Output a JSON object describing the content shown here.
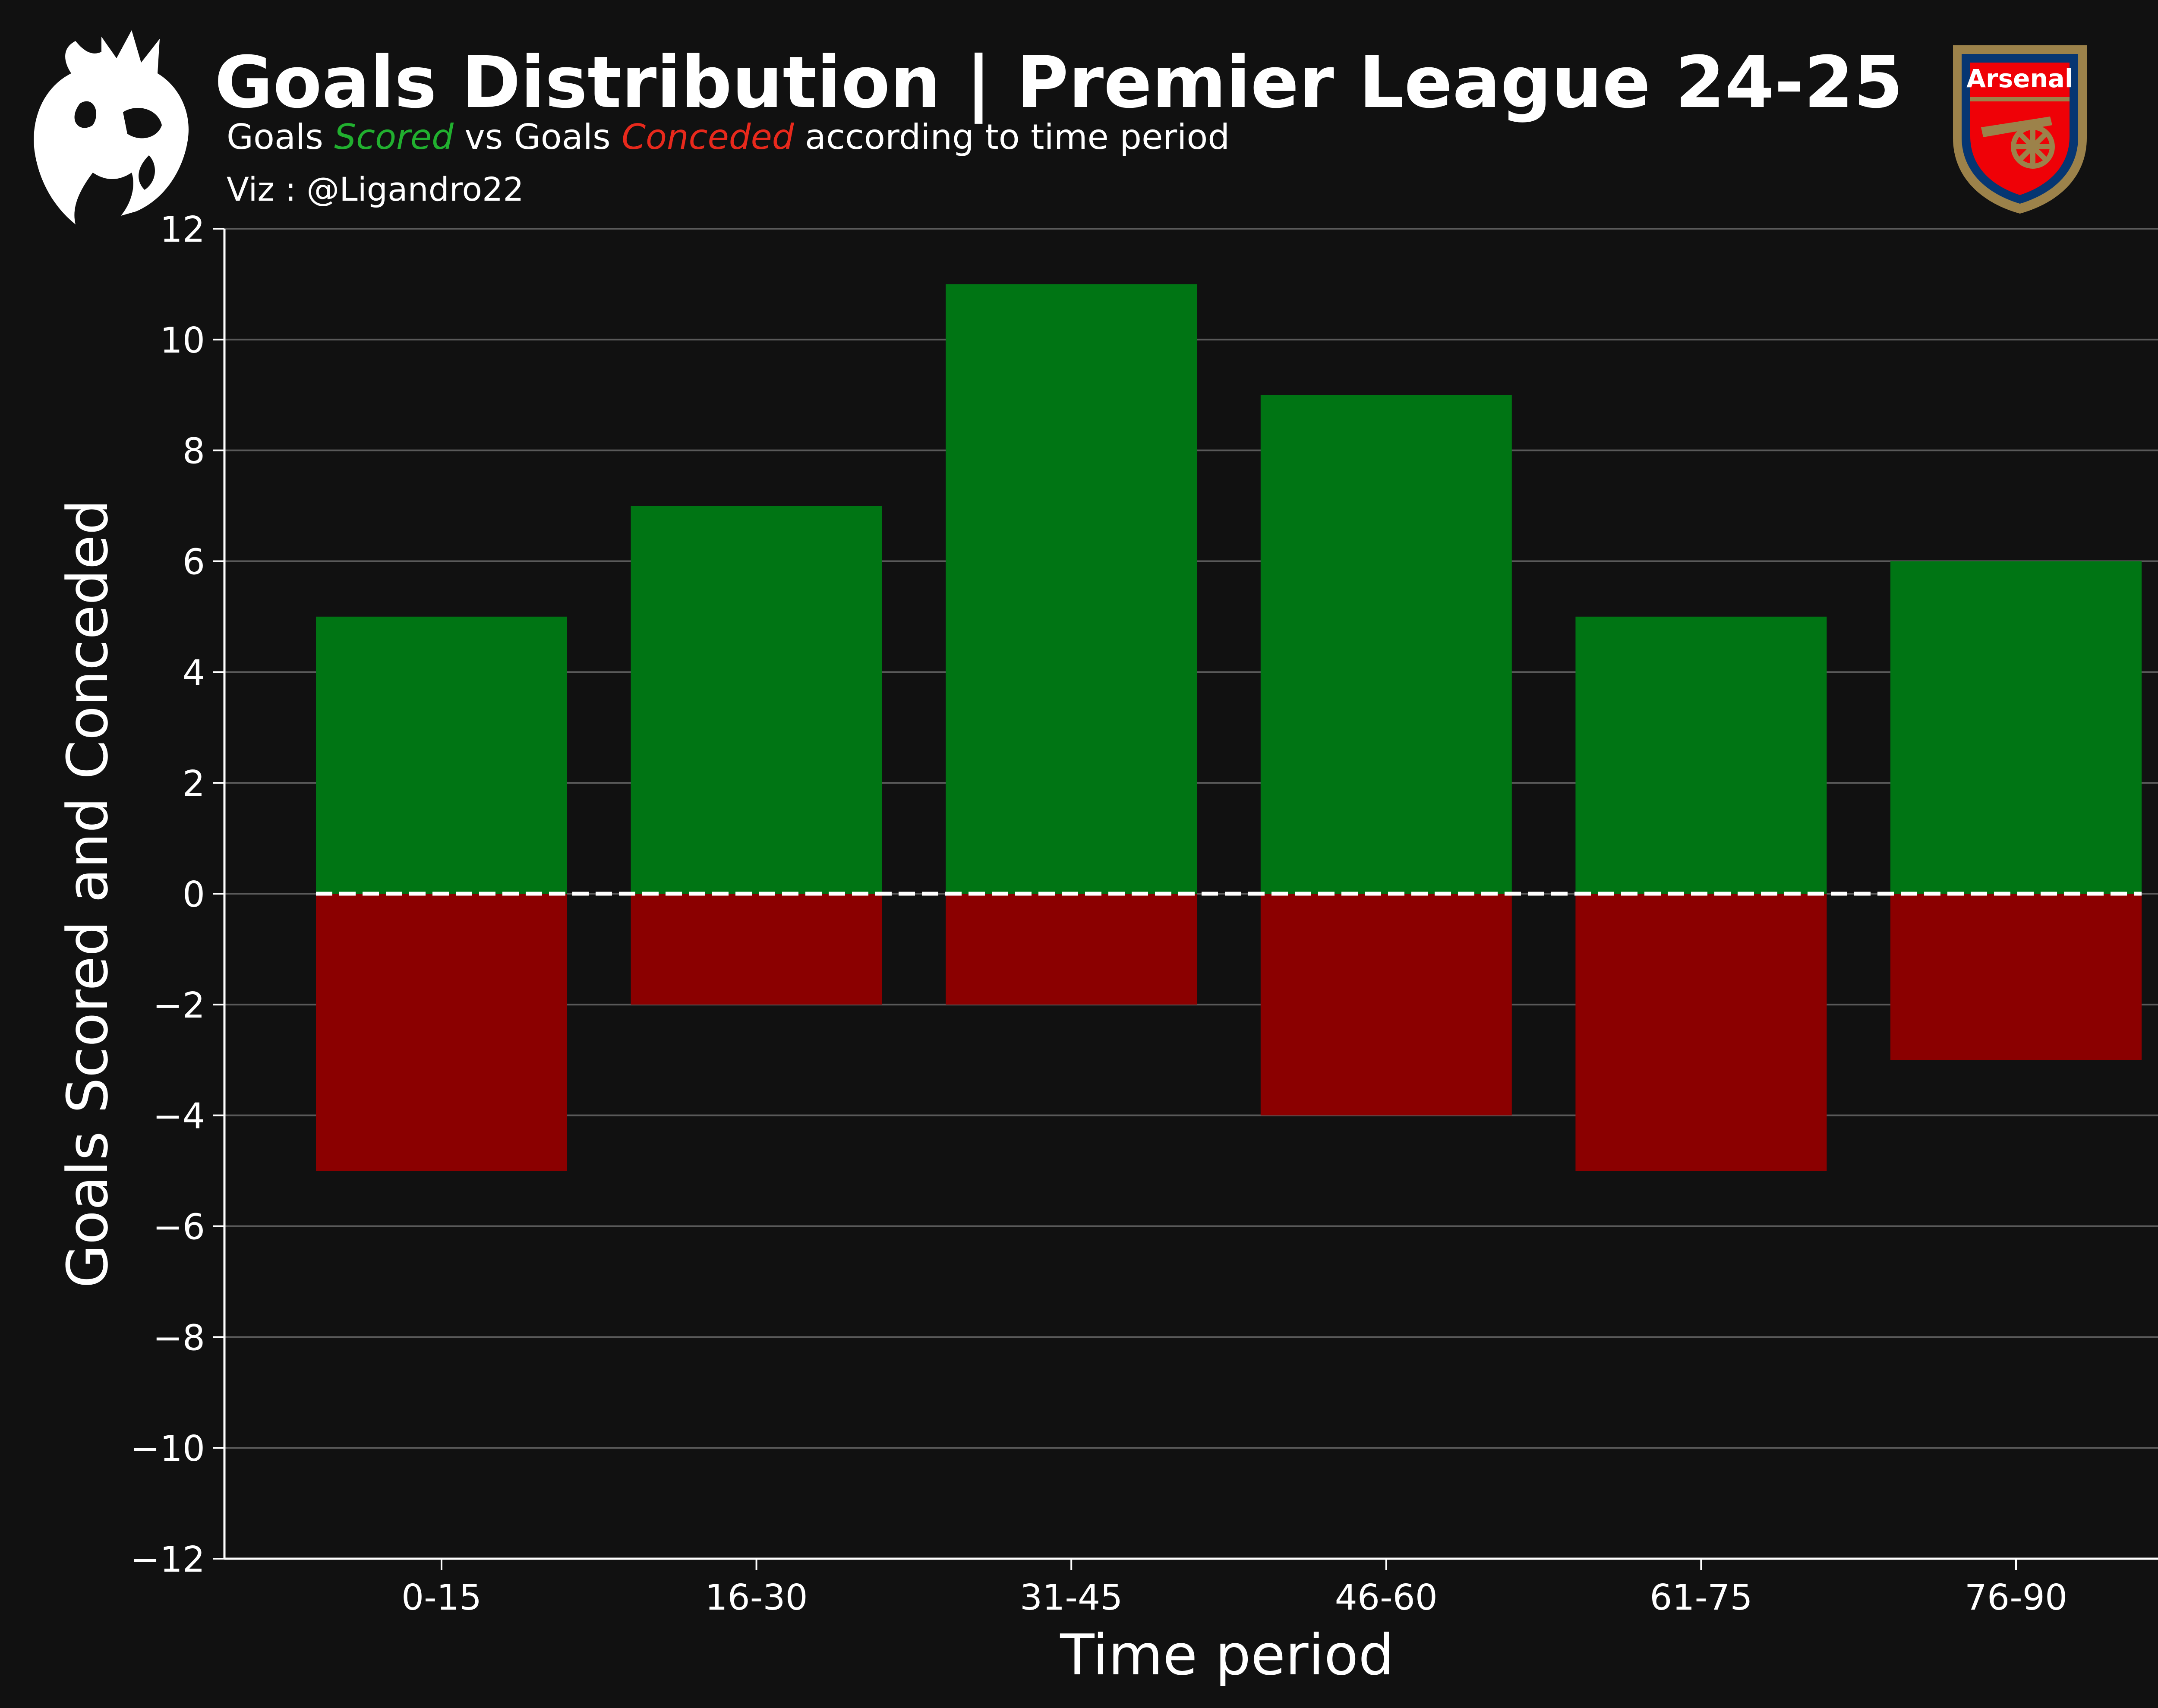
{
  "header": {
    "title": "Goals Distribution | Premier League 24-25",
    "subtitle_parts": [
      "Goals ",
      "Scored",
      " vs Goals ",
      "Conceded",
      " according to time period"
    ],
    "credit": "Viz : @Ligandro22",
    "league_logo": "premier-league-lion-logo",
    "club_badge": {
      "name": "arsenal-badge",
      "text": "Arsenal"
    }
  },
  "colors": {
    "background": "#111111",
    "scored": "#007514",
    "conceded": "#8b0000",
    "scored_text": "#21b02f",
    "conceded_text": "#e8291c",
    "grid": "#5a5a5a",
    "zero_line": "#ffffff",
    "arsenal_red": "#ef0107",
    "arsenal_gold": "#9c824a",
    "arsenal_navy": "#063672"
  },
  "chart_data": {
    "type": "bar",
    "categories": [
      "0-15",
      "16-30",
      "31-45",
      "46-60",
      "61-75",
      "76-90"
    ],
    "series": [
      {
        "name": "Scored",
        "values": [
          5,
          7,
          11,
          9,
          5,
          6
        ]
      },
      {
        "name": "Conceded",
        "values": [
          -5,
          -2,
          -2,
          -4,
          -5,
          -3
        ]
      }
    ],
    "title": "Goals Distribution | Premier League 24-25",
    "xlabel": "Time period",
    "ylabel": "Goals Scored and Conceded",
    "ylim": [
      -12,
      12
    ],
    "yticks": [
      12,
      10,
      8,
      6,
      4,
      2,
      0,
      -2,
      -4,
      -6,
      -8,
      -10,
      -12
    ],
    "ytick_labels": [
      "12",
      "10",
      "8",
      "6",
      "4",
      "2",
      "0",
      "−2",
      "−4",
      "−6",
      "−8",
      "−10",
      "−12"
    ],
    "grid": true,
    "zero_line": "dashed"
  }
}
